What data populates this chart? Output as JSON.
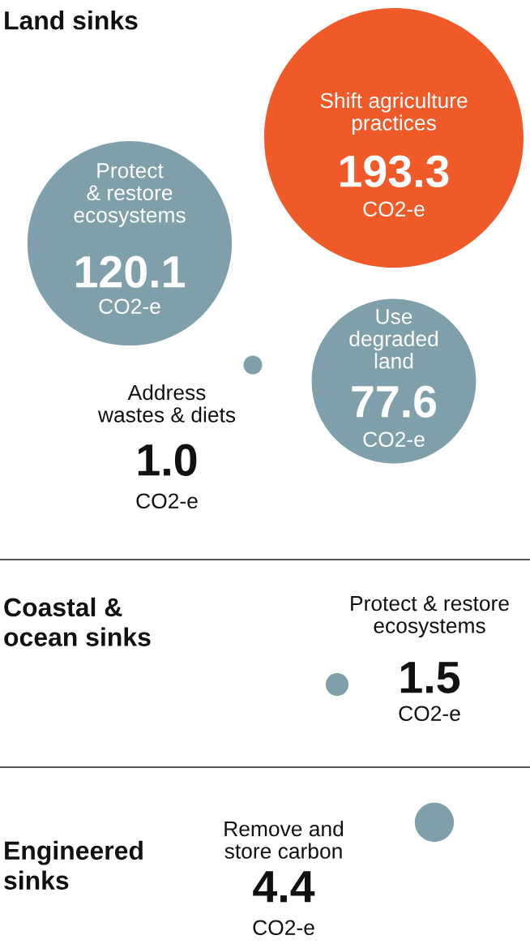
{
  "chart_data": {
    "type": "other",
    "categories": [
      "Shift agriculture\npractices",
      "Protect\n& restore\necosystems",
      "Use\ndegraded\nland",
      "Address\nwastes & diets",
      "Protect & restore\necosystems",
      "Remove and\nstore carbon"
    ],
    "series": [
      {
        "name": "Land sinks",
        "values": [
          193.3,
          120.1,
          77.6,
          1.0,
          null,
          null
        ],
        "colors": [
          "#f05a28",
          "#7f9faa",
          "#7f9faa",
          "#7f9faa",
          null,
          null
        ],
        "value_labels": [
          "193.3",
          "120.1",
          "77.6",
          "1.0",
          null,
          null
        ]
      },
      {
        "name": "Coastal &\nocean sinks",
        "values": [
          null,
          null,
          null,
          null,
          1.5,
          null
        ],
        "colors": [
          null,
          null,
          null,
          null,
          "#7f9faa",
          null
        ],
        "value_labels": [
          null,
          null,
          null,
          null,
          "1.5",
          null
        ]
      },
      {
        "name": "Engineered\nsinks",
        "values": [
          null,
          null,
          null,
          null,
          null,
          4.4
        ],
        "colors": [
          null,
          null,
          null,
          null,
          null,
          "#7f9faa"
        ],
        "value_labels": [
          null,
          null,
          null,
          null,
          null,
          "4.4"
        ]
      }
    ],
    "annotations": [
      "CO2-e",
      "CO2-e",
      "CO2-e",
      "CO2-e",
      "CO2-e",
      "CO2-e"
    ]
  }
}
